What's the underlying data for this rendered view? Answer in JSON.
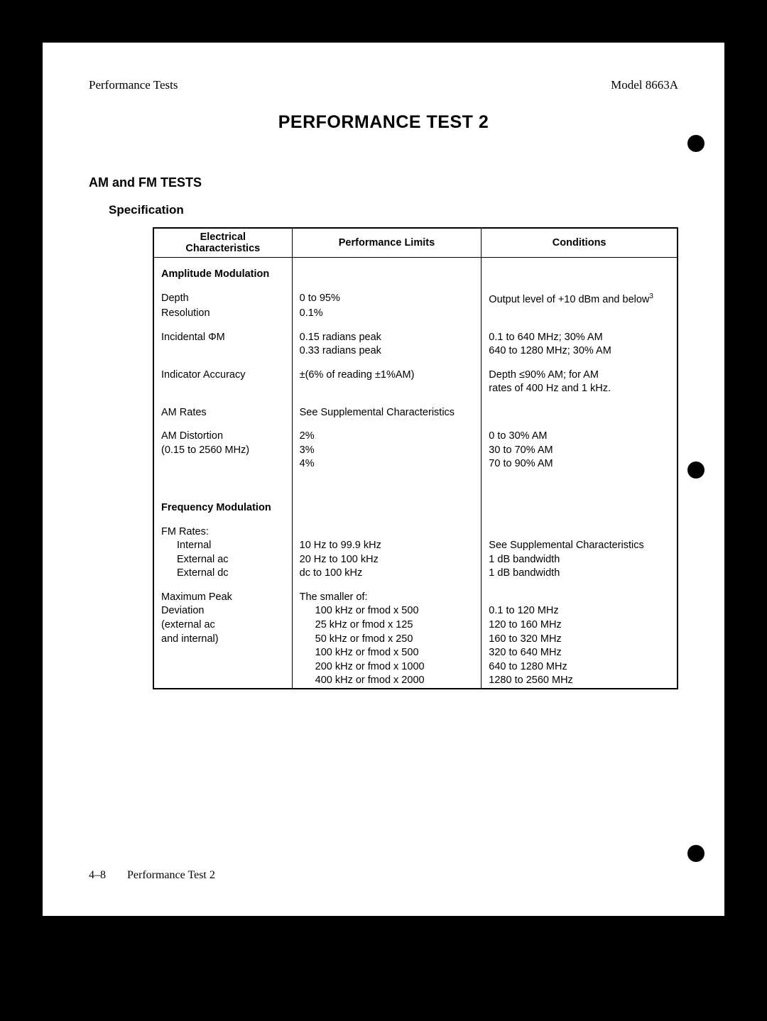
{
  "header": {
    "left": "Performance Tests",
    "right": "Model 8663A"
  },
  "title": "PERFORMANCE TEST 2",
  "section": "AM and FM TESTS",
  "subheading": "Specification",
  "table": {
    "columns": [
      "Electrical\nCharacteristics",
      "Performance Limits",
      "Conditions"
    ],
    "col_widths": [
      "190px",
      "270px",
      "280px"
    ],
    "sections": [
      {
        "category": "Amplitude Modulation",
        "rows": [
          {
            "c1": "Depth",
            "c2": "0 to 95%",
            "c3": "Output level of +10 dBm and below",
            "c3_sup": "3"
          },
          {
            "c1": "Resolution",
            "c2": "0.1%",
            "c3": ""
          },
          {
            "gap": true
          },
          {
            "c1": "Incidental ΦM",
            "c2": "0.15 radians peak",
            "c3": "0.1 to 640 MHz; 30% AM"
          },
          {
            "c1": "",
            "c2": "0.33 radians peak",
            "c3": "640 to 1280 MHz; 30% AM"
          },
          {
            "gap": true
          },
          {
            "c1": "Indicator Accuracy",
            "c2": "±(6% of reading ±1%AM)",
            "c3": "Depth ≤90% AM; for AM"
          },
          {
            "c1": "",
            "c2": "",
            "c3": "rates of 400 Hz and 1 kHz."
          },
          {
            "gap": true
          },
          {
            "c1": "AM Rates",
            "c2": "See Supplemental Characteristics",
            "c3": ""
          },
          {
            "gap": true
          },
          {
            "c1": "AM Distortion",
            "c2": "2%",
            "c3": "0 to 30% AM"
          },
          {
            "c1": "(0.15 to 2560 MHz)",
            "c2": "3%",
            "c3": "30 to 70% AM"
          },
          {
            "c1": "",
            "c2": "4%",
            "c3": "70 to 90% AM"
          }
        ]
      },
      {
        "category": "Frequency Modulation",
        "rows": [
          {
            "c1": "FM Rates:",
            "c2": "",
            "c3": ""
          },
          {
            "c1": "Internal",
            "c1_indent": true,
            "c2": "10 Hz to 99.9 kHz",
            "c3": "See Supplemental Characteristics"
          },
          {
            "c1": "External ac",
            "c1_indent": true,
            "c2": "20 Hz to 100 kHz",
            "c3": "1 dB bandwidth"
          },
          {
            "c1": "External dc",
            "c1_indent": true,
            "c2": "dc to 100 kHz",
            "c3": "1 dB bandwidth"
          },
          {
            "gap": true
          },
          {
            "c1": "Maximum Peak",
            "c2": "The smaller of:",
            "c3": ""
          },
          {
            "c1": "Deviation",
            "c2": "100 kHz or fmod x 500",
            "c2_indent": true,
            "c3": "0.1 to 120 MHz"
          },
          {
            "c1": "(external ac",
            "c2": "25 kHz or fmod x 125",
            "c2_indent": true,
            "c3": "120 to 160 MHz"
          },
          {
            "c1": "and internal)",
            "c2": "50 kHz or fmod x 250",
            "c2_indent": true,
            "c3": "160 to 320 MHz"
          },
          {
            "c1": "",
            "c2": "100 kHz or fmod x 500",
            "c2_indent": true,
            "c3": "320 to 640 MHz"
          },
          {
            "c1": "",
            "c2": "200 kHz or fmod x 1000",
            "c2_indent": true,
            "c3": "640 to 1280 MHz"
          },
          {
            "c1": "",
            "c2": "400 kHz or fmod x 2000",
            "c2_indent": true,
            "c3": "1280 to 2560 MHz"
          }
        ]
      }
    ]
  },
  "footer": {
    "page_number": "4–8",
    "page_label": "Performance Test 2"
  },
  "colors": {
    "page_bg": "#ffffff",
    "outer_bg": "#000000",
    "text": "#000000",
    "border": "#000000"
  }
}
